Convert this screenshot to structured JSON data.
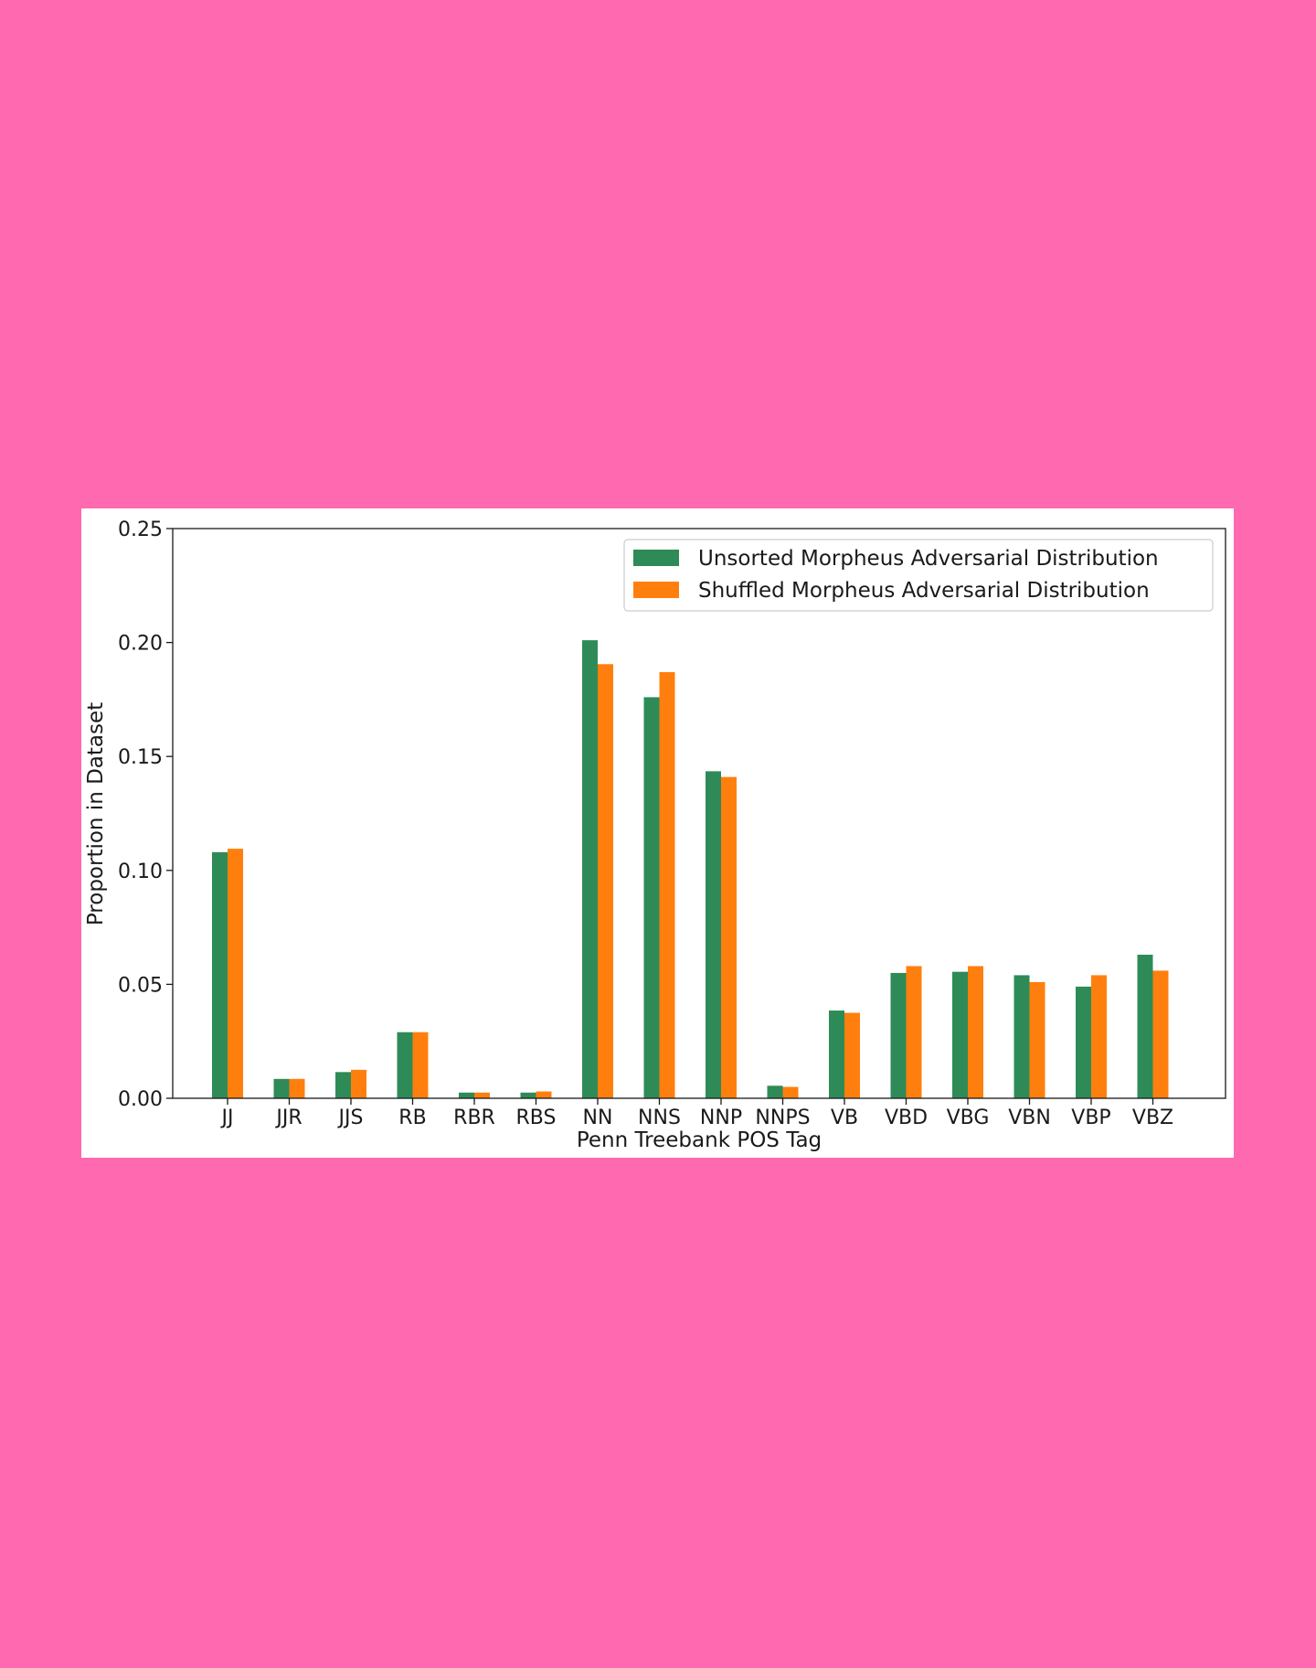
{
  "chart_data": {
    "type": "bar",
    "title": "",
    "xlabel": "Penn Treebank POS Tag",
    "ylabel": "Proportion in Dataset",
    "ylim": [
      0,
      0.25
    ],
    "yticks": [
      "0.00",
      "0.05",
      "0.10",
      "0.15",
      "0.20",
      "0.25"
    ],
    "ytick_values": [
      0,
      0.05,
      0.1,
      0.15,
      0.2,
      0.25
    ],
    "categories": [
      "JJ",
      "JJR",
      "JJS",
      "RB",
      "RBR",
      "RBS",
      "NN",
      "NNS",
      "NNP",
      "NNPS",
      "VB",
      "VBD",
      "VBG",
      "VBN",
      "VBP",
      "VBZ"
    ],
    "series": [
      {
        "name": "Unsorted Morpheus Adversarial Distribution",
        "color": "#2e8b57",
        "values": [
          0.108,
          0.0085,
          0.0115,
          0.029,
          0.0025,
          0.0025,
          0.201,
          0.176,
          0.1435,
          0.0055,
          0.0385,
          0.055,
          0.0555,
          0.054,
          0.049,
          0.063
        ]
      },
      {
        "name": "Shuffled Morpheus Adversarial Distribution",
        "color": "#ff7f0e",
        "values": [
          0.1095,
          0.0085,
          0.0125,
          0.029,
          0.0025,
          0.003,
          0.1905,
          0.187,
          0.141,
          0.005,
          0.0375,
          0.058,
          0.058,
          0.051,
          0.054,
          0.056
        ]
      }
    ],
    "legend_position": "top-right",
    "grid": false
  }
}
